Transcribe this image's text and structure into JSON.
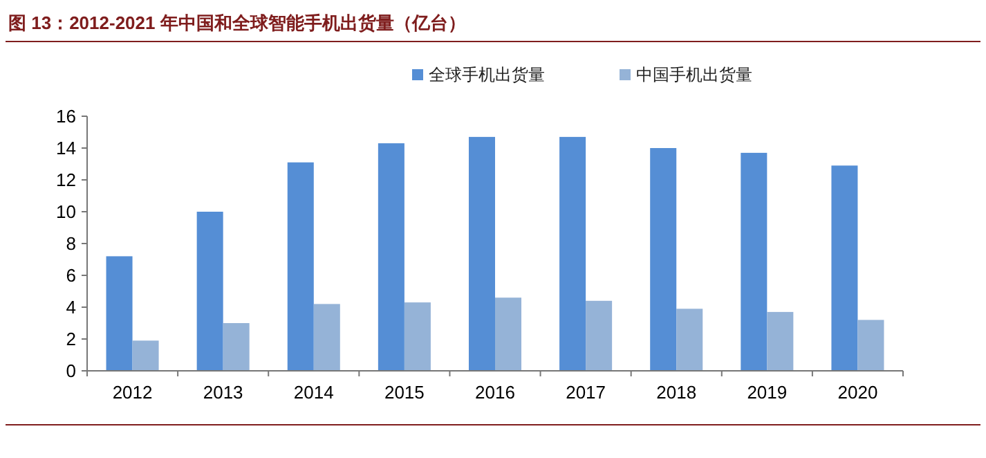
{
  "chart_data": {
    "type": "bar",
    "title": "图 13：2012-2021 年中国和全球智能手机出货量（亿台）",
    "categories": [
      "2012",
      "2013",
      "2014",
      "2015",
      "2016",
      "2017",
      "2018",
      "2019",
      "2020"
    ],
    "series": [
      {
        "name": "全球手机出货量",
        "color": "#558ed5",
        "values": [
          7.2,
          10.0,
          13.1,
          14.3,
          14.7,
          14.7,
          14.0,
          13.7,
          12.9
        ]
      },
      {
        "name": "中国手机出货量",
        "color": "#95b3d7",
        "values": [
          1.9,
          3.0,
          4.2,
          4.3,
          4.6,
          4.4,
          3.9,
          3.7,
          3.2
        ]
      }
    ],
    "ylim": [
      0,
      16
    ],
    "yticks": [
      0,
      2,
      4,
      6,
      8,
      10,
      12,
      14,
      16
    ],
    "grid": false,
    "legend": "top"
  }
}
